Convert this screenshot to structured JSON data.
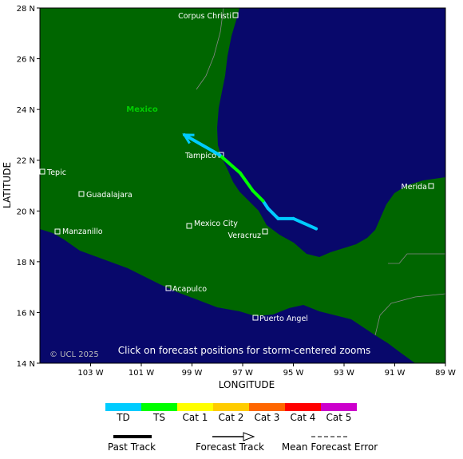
{
  "map": {
    "country_label": "Mexico",
    "copyright": "© UCL 2025",
    "hint": "Click on forecast positions for storm-centered zooms",
    "x_axis_label": "LONGITUDE",
    "y_axis_label": "LATITUDE",
    "xlim": [
      105,
      89
    ],
    "ylim": [
      14,
      28
    ],
    "xticks": [
      {
        "value": 103,
        "label": "103 W"
      },
      {
        "value": 101,
        "label": "101 W"
      },
      {
        "value": 99,
        "label": "99 W"
      },
      {
        "value": 97,
        "label": "97 W"
      },
      {
        "value": 95,
        "label": "95 W"
      },
      {
        "value": 93,
        "label": "93 W"
      },
      {
        "value": 91,
        "label": "91 W"
      },
      {
        "value": 89,
        "label": "89 W"
      }
    ],
    "yticks": [
      {
        "value": 28,
        "label": "28 N"
      },
      {
        "value": 26,
        "label": "26 N"
      },
      {
        "value": 24,
        "label": "24 N"
      },
      {
        "value": 22,
        "label": "22 N"
      },
      {
        "value": 20,
        "label": "20 N"
      },
      {
        "value": 18,
        "label": "18 N"
      },
      {
        "value": 16,
        "label": "16 N"
      },
      {
        "value": 14,
        "label": "14 N"
      }
    ],
    "cities": [
      "Corpus Christi",
      "Tampico",
      "Tepic",
      "Guadalajara",
      "Manzanillo",
      "Mexico City",
      "Veracruz",
      "Merida",
      "Acapulco",
      "Puerto Angel"
    ],
    "track": [
      {
        "lon_w": 94.1,
        "lat": 19.3,
        "intensity": "TD"
      },
      {
        "lon_w": 95.0,
        "lat": 19.7,
        "intensity": "TD"
      },
      {
        "lon_w": 95.6,
        "lat": 19.7,
        "intensity": "TD"
      },
      {
        "lon_w": 96.0,
        "lat": 20.1,
        "intensity": "TD"
      },
      {
        "lon_w": 96.2,
        "lat": 20.4,
        "intensity": "TD"
      },
      {
        "lon_w": 96.6,
        "lat": 20.8,
        "intensity": "TS"
      },
      {
        "lon_w": 97.1,
        "lat": 21.5,
        "intensity": "TS"
      },
      {
        "lon_w": 97.9,
        "lat": 22.2,
        "intensity": "TS"
      },
      {
        "lon_w": 99.3,
        "lat": 23.0,
        "intensity": "TD"
      }
    ]
  },
  "legend": {
    "scale": [
      {
        "name": "TD",
        "color": "#00ccff"
      },
      {
        "name": "TS",
        "color": "#00ff00"
      },
      {
        "name": "Cat 1",
        "color": "#ffff00"
      },
      {
        "name": "Cat 2",
        "color": "#ffcc00"
      },
      {
        "name": "Cat 3",
        "color": "#ff6600"
      },
      {
        "name": "Cat 4",
        "color": "#ff0000"
      },
      {
        "name": "Cat 5",
        "color": "#cc00cc"
      }
    ],
    "past_track": "Past Track",
    "forecast_track": "Forecast Track",
    "forecast_error": "Mean Forecast Error"
  }
}
